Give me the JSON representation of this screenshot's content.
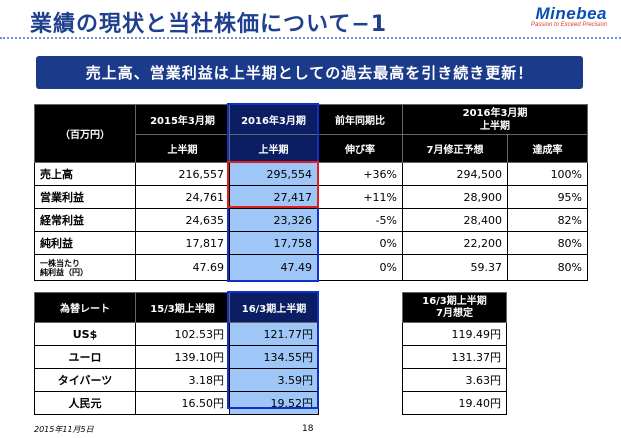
{
  "slide": {
    "title": "業績の現状と当社株価について−1",
    "logo_name": "Minebea",
    "logo_tagline": "Passion to Exceed Precision",
    "banner": "売上高、営業利益は上半期としての過去最高を引き続き更新！",
    "date": "2015年11月5日",
    "page_number": "18"
  },
  "results_table": {
    "unit_label": "（百万円）",
    "col_2015_title": "2015年3月期",
    "col_2015_sub": "上半期",
    "col_2016_title": "2016年3月期",
    "col_2016_sub": "上半期",
    "col_yoy_title": "前年同期比",
    "col_yoy_sub": "伸び率",
    "col_fy_title": "2016年3月期\n上半期",
    "col_fy_forecast": "7月修正予想",
    "col_fy_achieve": "達成率",
    "rows": [
      {
        "label": "売上高",
        "v2015": "216,557",
        "v2016": "295,554",
        "yoy": "+36%",
        "forecast": "294,500",
        "achieve": "100%"
      },
      {
        "label": "営業利益",
        "v2015": "24,761",
        "v2016": "27,417",
        "yoy": "+11%",
        "forecast": "28,900",
        "achieve": "95%"
      },
      {
        "label": "経常利益",
        "v2015": "24,635",
        "v2016": "23,326",
        "yoy": "-5%",
        "forecast": "28,400",
        "achieve": "82%"
      },
      {
        "label": "純利益",
        "v2015": "17,817",
        "v2016": "17,758",
        "yoy": "0%",
        "forecast": "22,200",
        "achieve": "80%"
      },
      {
        "label": "一株当たり\n純利益（円）",
        "v2015": "47.69",
        "v2016": "47.49",
        "yoy": "0%",
        "forecast": "59.37",
        "achieve": "80%"
      }
    ]
  },
  "fx_table": {
    "header_label": "為替レート",
    "col_2015": "15/3期上半期",
    "col_2016": "16/3期上半期",
    "col_forecast": "16/3期上半期\n7月想定",
    "rows": [
      {
        "label": "US$",
        "v2015": "102.53円",
        "v2016": "121.77円",
        "forecast": "119.49円"
      },
      {
        "label": "ユーロ",
        "v2015": "139.10円",
        "v2016": "134.55円",
        "forecast": "131.37円"
      },
      {
        "label": "タイバーツ",
        "v2015": "3.18円",
        "v2016": "3.59円",
        "forecast": "3.63円"
      },
      {
        "label": "人民元",
        "v2015": "16.50円",
        "v2016": "19.52円",
        "forecast": "19.40円"
      }
    ]
  }
}
